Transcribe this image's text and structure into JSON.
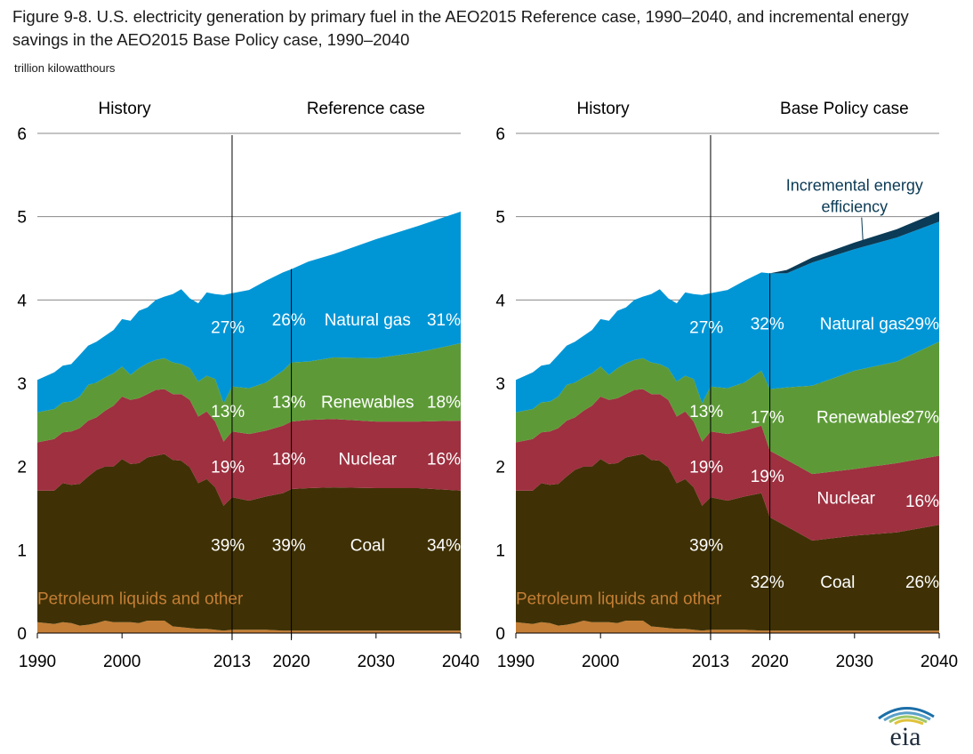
{
  "title": "Figure 9-8. U.S. electricity generation by primary fuel in the AEO2015 Reference case, 1990–2040, and incremental energy savings in the AEO2015 Base Policy case, 1990–2040",
  "units": "trillion kilowatthours",
  "logo_text": "eia",
  "colors": {
    "petroleum": "#c47e35",
    "coal": "#3f3105",
    "nuclear": "#9e3040",
    "renewables": "#5d9a37",
    "natural_gas": "#0096d6",
    "efficiency": "#0b3b56",
    "gridline": "#888888",
    "petroleum_label": "#c47e35"
  },
  "chart_data": [
    {
      "type": "area",
      "stacked": true,
      "panel_left_label": "History",
      "panel_right_label": "Reference case",
      "ylim": [
        0,
        6
      ],
      "yticks": [
        "0",
        "1",
        "2",
        "3",
        "4",
        "5",
        "6"
      ],
      "xticks": [
        "1990",
        "2000",
        "2013",
        "2020",
        "2030",
        "2040"
      ],
      "xtick_values": [
        1990,
        2000,
        2013,
        2020,
        2030,
        2040
      ],
      "xlim": [
        1990,
        2040
      ],
      "dividers": [
        2013,
        2020
      ],
      "x": [
        1990,
        1992,
        1993,
        1994,
        1995,
        1996,
        1997,
        1998,
        1999,
        2000,
        2001,
        2002,
        2003,
        2004,
        2005,
        2006,
        2007,
        2008,
        2009,
        2010,
        2011,
        2012,
        2013,
        2015,
        2017,
        2019,
        2020,
        2022,
        2025,
        2030,
        2035,
        2040
      ],
      "series": [
        {
          "key": "petroleum",
          "values": [
            0.13,
            0.11,
            0.13,
            0.12,
            0.09,
            0.1,
            0.12,
            0.15,
            0.13,
            0.13,
            0.13,
            0.12,
            0.15,
            0.15,
            0.15,
            0.08,
            0.07,
            0.06,
            0.05,
            0.05,
            0.04,
            0.03,
            0.04,
            0.04,
            0.04,
            0.03,
            0.03,
            0.03,
            0.03,
            0.03,
            0.03,
            0.03
          ]
        },
        {
          "key": "coal",
          "values": [
            1.58,
            1.6,
            1.67,
            1.66,
            1.7,
            1.78,
            1.84,
            1.85,
            1.87,
            1.96,
            1.9,
            1.92,
            1.96,
            1.98,
            2.0,
            2.0,
            2.0,
            1.93,
            1.75,
            1.8,
            1.71,
            1.5,
            1.59,
            1.55,
            1.6,
            1.65,
            1.7,
            1.71,
            1.72,
            1.71,
            1.71,
            1.68
          ]
        },
        {
          "key": "nuclear",
          "values": [
            0.58,
            0.62,
            0.61,
            0.64,
            0.67,
            0.67,
            0.63,
            0.67,
            0.73,
            0.75,
            0.77,
            0.78,
            0.76,
            0.79,
            0.78,
            0.79,
            0.8,
            0.81,
            0.8,
            0.81,
            0.79,
            0.77,
            0.79,
            0.8,
            0.79,
            0.81,
            0.81,
            0.82,
            0.82,
            0.8,
            0.8,
            0.84
          ]
        },
        {
          "key": "renewables",
          "values": [
            0.36,
            0.36,
            0.36,
            0.36,
            0.38,
            0.43,
            0.42,
            0.4,
            0.39,
            0.36,
            0.3,
            0.36,
            0.37,
            0.36,
            0.37,
            0.38,
            0.36,
            0.38,
            0.42,
            0.43,
            0.51,
            0.46,
            0.54,
            0.55,
            0.58,
            0.66,
            0.71,
            0.7,
            0.74,
            0.76,
            0.83,
            0.93
          ]
        },
        {
          "key": "natural_gas",
          "values": [
            0.39,
            0.44,
            0.44,
            0.45,
            0.5,
            0.47,
            0.49,
            0.5,
            0.52,
            0.57,
            0.65,
            0.69,
            0.67,
            0.72,
            0.74,
            0.82,
            0.9,
            0.84,
            0.94,
            1.0,
            1.02,
            1.3,
            1.12,
            1.18,
            1.22,
            1.18,
            1.12,
            1.2,
            1.24,
            1.43,
            1.52,
            1.58
          ]
        }
      ],
      "labels": [
        {
          "text": "Petroleum liquids and other",
          "x": 1990,
          "y": 0.42,
          "anchor": "start",
          "color": "petroleum_label"
        },
        {
          "text": "27%",
          "x": 2012.5,
          "y": 3.68,
          "anchor": "middle"
        },
        {
          "text": "13%",
          "x": 2012.5,
          "y": 2.67,
          "anchor": "middle"
        },
        {
          "text": "19%",
          "x": 2012.5,
          "y": 2.0,
          "anchor": "middle"
        },
        {
          "text": "39%",
          "x": 2012.5,
          "y": 1.06,
          "anchor": "middle"
        },
        {
          "text": "26%",
          "x": 2019.7,
          "y": 3.77,
          "anchor": "middle"
        },
        {
          "text": "13%",
          "x": 2019.7,
          "y": 2.78,
          "anchor": "middle"
        },
        {
          "text": "18%",
          "x": 2019.7,
          "y": 2.1,
          "anchor": "middle"
        },
        {
          "text": "39%",
          "x": 2019.7,
          "y": 1.06,
          "anchor": "middle"
        },
        {
          "text": "Natural gas",
          "x": 2029,
          "y": 3.77,
          "anchor": "middle"
        },
        {
          "text": "Renewables",
          "x": 2029,
          "y": 2.78,
          "anchor": "middle"
        },
        {
          "text": "Nuclear",
          "x": 2029,
          "y": 2.1,
          "anchor": "middle"
        },
        {
          "text": "Coal",
          "x": 2029,
          "y": 1.06,
          "anchor": "middle"
        },
        {
          "text": "31%",
          "x": 2040,
          "y": 3.77,
          "anchor": "end"
        },
        {
          "text": "18%",
          "x": 2040,
          "y": 2.78,
          "anchor": "end"
        },
        {
          "text": "16%",
          "x": 2040,
          "y": 2.1,
          "anchor": "end"
        },
        {
          "text": "34%",
          "x": 2040,
          "y": 1.06,
          "anchor": "end"
        }
      ]
    },
    {
      "type": "area",
      "stacked": true,
      "panel_left_label": "History",
      "panel_right_label": "Base Policy case",
      "ylim": [
        0,
        6
      ],
      "yticks": [
        "0",
        "1",
        "2",
        "3",
        "4",
        "5",
        "6"
      ],
      "xticks": [
        "1990",
        "2000",
        "2013",
        "2020",
        "2030",
        "2040"
      ],
      "xtick_values": [
        1990,
        2000,
        2013,
        2020,
        2030,
        2040
      ],
      "xlim": [
        1990,
        2040
      ],
      "dividers": [
        2013,
        2020
      ],
      "x": [
        1990,
        1992,
        1993,
        1994,
        1995,
        1996,
        1997,
        1998,
        1999,
        2000,
        2001,
        2002,
        2003,
        2004,
        2005,
        2006,
        2007,
        2008,
        2009,
        2010,
        2011,
        2012,
        2013,
        2015,
        2017,
        2019,
        2020,
        2022,
        2025,
        2030,
        2035,
        2040
      ],
      "series": [
        {
          "key": "petroleum",
          "values": [
            0.13,
            0.11,
            0.13,
            0.12,
            0.09,
            0.1,
            0.12,
            0.15,
            0.13,
            0.13,
            0.13,
            0.12,
            0.15,
            0.15,
            0.15,
            0.08,
            0.07,
            0.06,
            0.05,
            0.05,
            0.04,
            0.03,
            0.04,
            0.04,
            0.04,
            0.03,
            0.03,
            0.03,
            0.03,
            0.03,
            0.03,
            0.03
          ]
        },
        {
          "key": "coal",
          "values": [
            1.58,
            1.6,
            1.67,
            1.66,
            1.7,
            1.78,
            1.84,
            1.85,
            1.87,
            1.96,
            1.9,
            1.92,
            1.96,
            1.98,
            2.0,
            2.0,
            2.0,
            1.93,
            1.75,
            1.8,
            1.71,
            1.5,
            1.59,
            1.55,
            1.6,
            1.65,
            1.36,
            1.25,
            1.08,
            1.14,
            1.18,
            1.27
          ]
        },
        {
          "key": "nuclear",
          "values": [
            0.58,
            0.62,
            0.61,
            0.64,
            0.67,
            0.67,
            0.63,
            0.67,
            0.73,
            0.75,
            0.77,
            0.78,
            0.76,
            0.79,
            0.78,
            0.79,
            0.8,
            0.81,
            0.8,
            0.81,
            0.79,
            0.77,
            0.79,
            0.8,
            0.79,
            0.81,
            0.8,
            0.8,
            0.8,
            0.8,
            0.83,
            0.83
          ]
        },
        {
          "key": "renewables",
          "values": [
            0.36,
            0.36,
            0.36,
            0.36,
            0.38,
            0.43,
            0.42,
            0.4,
            0.39,
            0.36,
            0.3,
            0.36,
            0.37,
            0.36,
            0.37,
            0.38,
            0.36,
            0.38,
            0.42,
            0.43,
            0.51,
            0.46,
            0.54,
            0.55,
            0.58,
            0.66,
            0.74,
            0.87,
            1.06,
            1.18,
            1.22,
            1.37
          ]
        },
        {
          "key": "natural_gas",
          "values": [
            0.39,
            0.44,
            0.44,
            0.45,
            0.5,
            0.47,
            0.49,
            0.5,
            0.52,
            0.57,
            0.65,
            0.69,
            0.67,
            0.72,
            0.74,
            0.82,
            0.9,
            0.84,
            0.94,
            1.0,
            1.02,
            1.3,
            1.12,
            1.18,
            1.22,
            1.18,
            1.39,
            1.37,
            1.48,
            1.46,
            1.49,
            1.44
          ]
        },
        {
          "key": "efficiency",
          "values": [
            0,
            0,
            0,
            0,
            0,
            0,
            0,
            0,
            0,
            0,
            0,
            0,
            0,
            0,
            0,
            0,
            0,
            0,
            0,
            0,
            0,
            0,
            0,
            0,
            0,
            0,
            0.0,
            0.04,
            0.06,
            0.08,
            0.1,
            0.12
          ]
        }
      ],
      "labels": [
        {
          "text": "Petroleum liquids and other",
          "x": 1990,
          "y": 0.42,
          "anchor": "start",
          "color": "petroleum_label"
        },
        {
          "text": "27%",
          "x": 2012.5,
          "y": 3.68,
          "anchor": "middle"
        },
        {
          "text": "13%",
          "x": 2012.5,
          "y": 2.67,
          "anchor": "middle"
        },
        {
          "text": "19%",
          "x": 2012.5,
          "y": 2.0,
          "anchor": "middle"
        },
        {
          "text": "39%",
          "x": 2012.5,
          "y": 1.06,
          "anchor": "middle"
        },
        {
          "text": "32%",
          "x": 2019.7,
          "y": 3.72,
          "anchor": "middle"
        },
        {
          "text": "17%",
          "x": 2019.7,
          "y": 2.6,
          "anchor": "middle"
        },
        {
          "text": "19%",
          "x": 2019.7,
          "y": 1.89,
          "anchor": "middle"
        },
        {
          "text": "32%",
          "x": 2019.7,
          "y": 0.62,
          "anchor": "middle"
        },
        {
          "text": "Natural gas",
          "x": 2031,
          "y": 3.72,
          "anchor": "middle"
        },
        {
          "text": "Renewables",
          "x": 2031,
          "y": 2.6,
          "anchor": "middle"
        },
        {
          "text": "Nuclear",
          "x": 2029,
          "y": 1.63,
          "anchor": "middle"
        },
        {
          "text": "Coal",
          "x": 2028,
          "y": 0.62,
          "anchor": "middle"
        },
        {
          "text": "29%",
          "x": 2040,
          "y": 3.72,
          "anchor": "end"
        },
        {
          "text": "27%",
          "x": 2040,
          "y": 2.6,
          "anchor": "end"
        },
        {
          "text": "16%",
          "x": 2040,
          "y": 1.59,
          "anchor": "end"
        },
        {
          "text": "26%",
          "x": 2040,
          "y": 0.62,
          "anchor": "end"
        }
      ],
      "callout": {
        "lines": [
          "Incremental energy",
          "efficiency"
        ],
        "x": 2030,
        "y": 5.31,
        "target": [
          2031,
          4.69
        ],
        "color": "efficiency"
      }
    }
  ]
}
